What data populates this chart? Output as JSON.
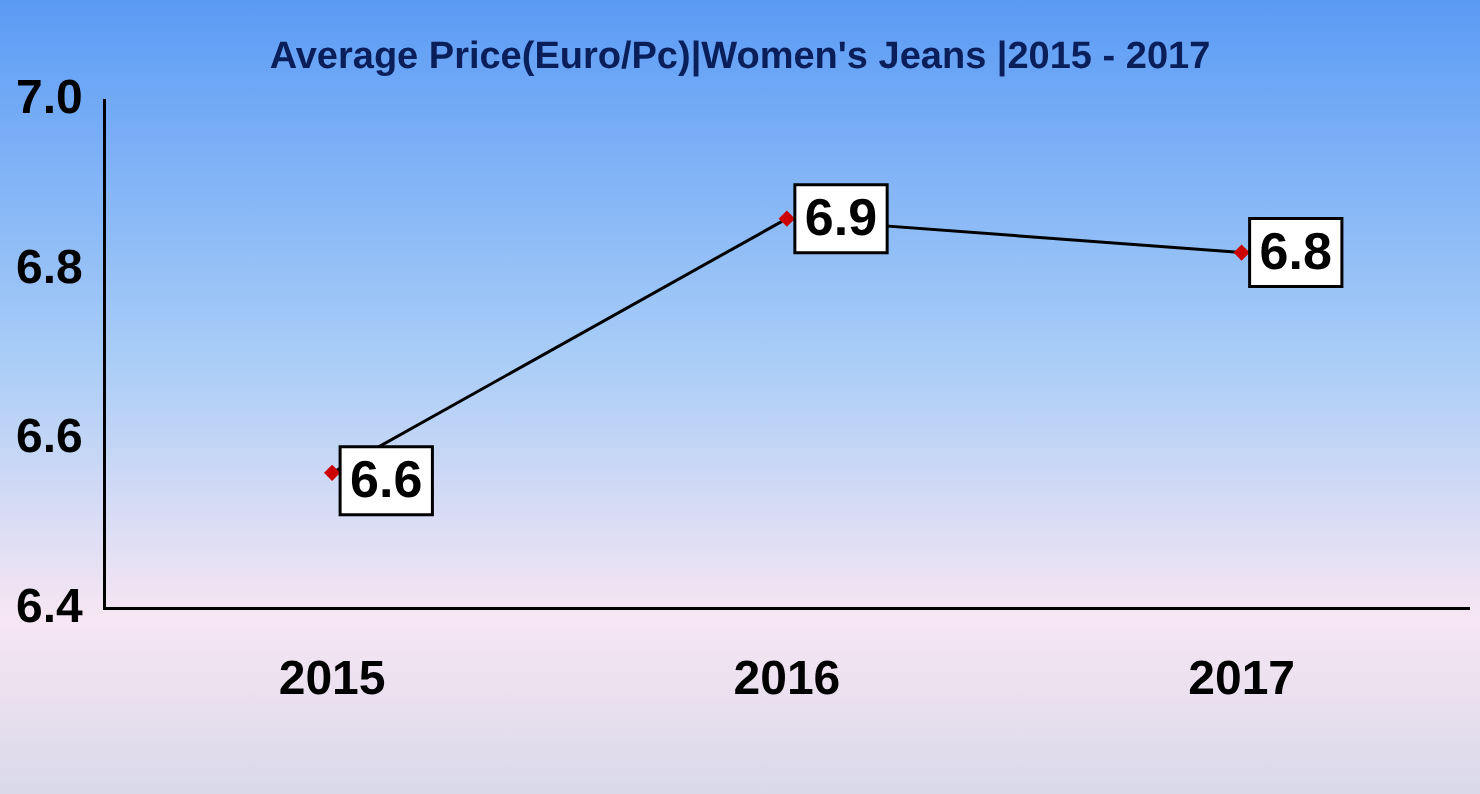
{
  "chart_data": {
    "type": "line",
    "title": "Average Price(Euro/Pc)|Women's Jeans  |2015 - 2017",
    "categories": [
      "2015",
      "2016",
      "2017"
    ],
    "series": [
      {
        "color": "#000000",
        "values": [
          6.56,
          6.86,
          6.82
        ],
        "value_labels": [
          "6.6",
          "6.9",
          "6.8"
        ]
      }
    ],
    "ylim": [
      6.4,
      7.0
    ],
    "yticks": [
      {
        "value": 6.4,
        "label": "6.4"
      },
      {
        "value": 6.6,
        "label": "6.6"
      },
      {
        "value": 6.8,
        "label": "6.8"
      },
      {
        "value": 7,
        "label": "7.0"
      }
    ],
    "grid": false,
    "legend": false,
    "marker": "diamond",
    "line_style": "solid"
  }
}
